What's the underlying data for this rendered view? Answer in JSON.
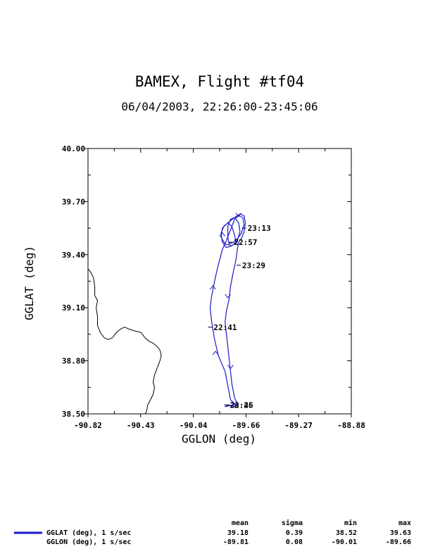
{
  "chart_data": {
    "type": "line",
    "title": "BAMEX, Flight #tf04",
    "subtitle": "06/04/2003, 22:26:00-23:45:06",
    "xlabel": "GGLON (deg)",
    "ylabel": "GGLAT (deg)",
    "xlim": [
      -90.82,
      -88.88
    ],
    "ylim": [
      38.5,
      40.0
    ],
    "x_ticks": [
      "-90.82",
      "-90.43",
      "-90.04",
      "-89.66",
      "-89.27",
      "-88.88"
    ],
    "y_ticks": [
      "38.50",
      "38.80",
      "39.10",
      "39.40",
      "39.70",
      "40.00"
    ],
    "grid": false,
    "series": [
      {
        "color": "#1a1acc",
        "points": [
          [
            -89.73,
            38.55
          ],
          [
            -89.77,
            38.58
          ],
          [
            -89.79,
            38.66
          ],
          [
            -89.81,
            38.74
          ],
          [
            -89.86,
            38.83
          ],
          [
            -89.89,
            38.93
          ],
          [
            -89.91,
            39.03
          ],
          [
            -89.92,
            39.1
          ],
          [
            -89.91,
            39.16
          ],
          [
            -89.89,
            39.24
          ],
          [
            -89.87,
            39.31
          ],
          [
            -89.85,
            39.37
          ],
          [
            -89.83,
            39.43
          ],
          [
            -89.8,
            39.48
          ],
          [
            -89.78,
            39.52
          ],
          [
            -89.76,
            39.56
          ],
          [
            -89.74,
            39.6
          ],
          [
            -89.71,
            39.62
          ],
          [
            -89.68,
            39.61
          ],
          [
            -89.67,
            39.57
          ],
          [
            -89.69,
            39.52
          ],
          [
            -89.72,
            39.49
          ],
          [
            -89.75,
            39.47
          ],
          [
            -89.78,
            39.46
          ],
          [
            -89.79,
            39.5
          ],
          [
            -89.79,
            39.56
          ],
          [
            -89.77,
            39.6
          ],
          [
            -89.74,
            39.61
          ],
          [
            -89.71,
            39.58
          ],
          [
            -89.7,
            39.53
          ],
          [
            -89.72,
            39.48
          ],
          [
            -89.76,
            39.45
          ],
          [
            -89.8,
            39.44
          ],
          [
            -89.83,
            39.47
          ],
          [
            -89.84,
            39.52
          ],
          [
            -89.82,
            39.56
          ],
          [
            -89.79,
            39.58
          ],
          [
            -89.76,
            39.56
          ],
          [
            -89.74,
            39.51
          ],
          [
            -89.73,
            39.47
          ],
          [
            -89.76,
            39.45
          ],
          [
            -89.81,
            39.46
          ],
          [
            -89.84,
            39.5
          ],
          [
            -89.83,
            39.55
          ],
          [
            -89.79,
            39.58
          ],
          [
            -89.74,
            39.61
          ],
          [
            -89.7,
            39.63
          ],
          [
            -89.67,
            39.62
          ],
          [
            -89.66,
            39.58
          ],
          [
            -89.67,
            39.53
          ],
          [
            -89.69,
            39.49
          ],
          [
            -89.71,
            39.47
          ],
          [
            -89.72,
            39.43
          ],
          [
            -89.73,
            39.37
          ],
          [
            -89.75,
            39.3
          ],
          [
            -89.77,
            39.22
          ],
          [
            -89.78,
            39.15
          ],
          [
            -89.8,
            39.08
          ],
          [
            -89.81,
            39.02
          ],
          [
            -89.8,
            38.95
          ],
          [
            -89.79,
            38.88
          ],
          [
            -89.78,
            38.81
          ],
          [
            -89.77,
            38.74
          ],
          [
            -89.76,
            38.67
          ],
          [
            -89.74,
            38.59
          ],
          [
            -89.72,
            38.56
          ],
          [
            -89.74,
            38.54
          ],
          [
            -89.78,
            38.55
          ],
          [
            -89.81,
            38.54
          ],
          [
            -89.76,
            38.55
          ],
          [
            -89.72,
            38.55
          ]
        ]
      }
    ],
    "background_line": {
      "color": "#000000",
      "points": [
        [
          -90.82,
          39.32
        ],
        [
          -90.8,
          39.3
        ],
        [
          -90.78,
          39.27
        ],
        [
          -90.77,
          39.22
        ],
        [
          -90.77,
          39.17
        ],
        [
          -90.75,
          39.14
        ],
        [
          -90.76,
          39.1
        ],
        [
          -90.75,
          39.05
        ],
        [
          -90.75,
          39.0
        ],
        [
          -90.73,
          38.96
        ],
        [
          -90.7,
          38.93
        ],
        [
          -90.67,
          38.92
        ],
        [
          -90.64,
          38.93
        ],
        [
          -90.61,
          38.96
        ],
        [
          -90.58,
          38.98
        ],
        [
          -90.55,
          38.99
        ],
        [
          -90.52,
          38.98
        ],
        [
          -90.48,
          38.97
        ],
        [
          -90.43,
          38.96
        ],
        [
          -90.4,
          38.93
        ],
        [
          -90.37,
          38.91
        ],
        [
          -90.34,
          38.9
        ],
        [
          -90.31,
          38.88
        ],
        [
          -90.29,
          38.86
        ],
        [
          -90.28,
          38.83
        ],
        [
          -90.29,
          38.8
        ],
        [
          -90.31,
          38.76
        ],
        [
          -90.33,
          38.72
        ],
        [
          -90.34,
          38.68
        ],
        [
          -90.33,
          38.65
        ],
        [
          -90.34,
          38.61
        ],
        [
          -90.36,
          38.58
        ],
        [
          -90.38,
          38.55
        ],
        [
          -90.39,
          38.51
        ],
        [
          -90.4,
          38.5
        ]
      ]
    },
    "direction_arrows": [
      {
        "x": -89.9,
        "y": 39.22,
        "dir": "up"
      },
      {
        "x": -89.88,
        "y": 38.85,
        "dir": "up"
      },
      {
        "x": -89.79,
        "y": 39.16,
        "dir": "down"
      },
      {
        "x": -89.77,
        "y": 38.76,
        "dir": "down"
      },
      {
        "x": -89.71,
        "y": 39.62,
        "dir": "down"
      },
      {
        "x": -89.83,
        "y": 39.52,
        "dir": "up"
      }
    ],
    "time_labels": [
      {
        "text": "23:13",
        "x": -89.66,
        "y": 39.55
      },
      {
        "text": "22:57",
        "x": -89.76,
        "y": 39.47
      },
      {
        "text": "23:29",
        "x": -89.7,
        "y": 39.34
      },
      {
        "text": "22:41",
        "x": -89.91,
        "y": 38.99
      },
      {
        "text": "23:45",
        "x": -89.79,
        "y": 38.55
      },
      {
        "text": "22:26",
        "x": -89.79,
        "y": 38.55
      }
    ]
  },
  "legend": {
    "header": {
      "mean": "mean",
      "sigma": "sigma",
      "min": "min",
      "max": "max"
    },
    "rows": [
      {
        "label": "GGLAT (deg), 1 s/sec",
        "mean": "39.18",
        "sigma": "0.39",
        "min": "38.52",
        "max": "39.63",
        "color": "#1a1acc"
      },
      {
        "label": "GGLON (deg), 1 s/sec",
        "mean": "-89.81",
        "sigma": "0.08",
        "min": "-90.01",
        "max": "-89.66",
        "color": "#1a1acc"
      }
    ]
  }
}
